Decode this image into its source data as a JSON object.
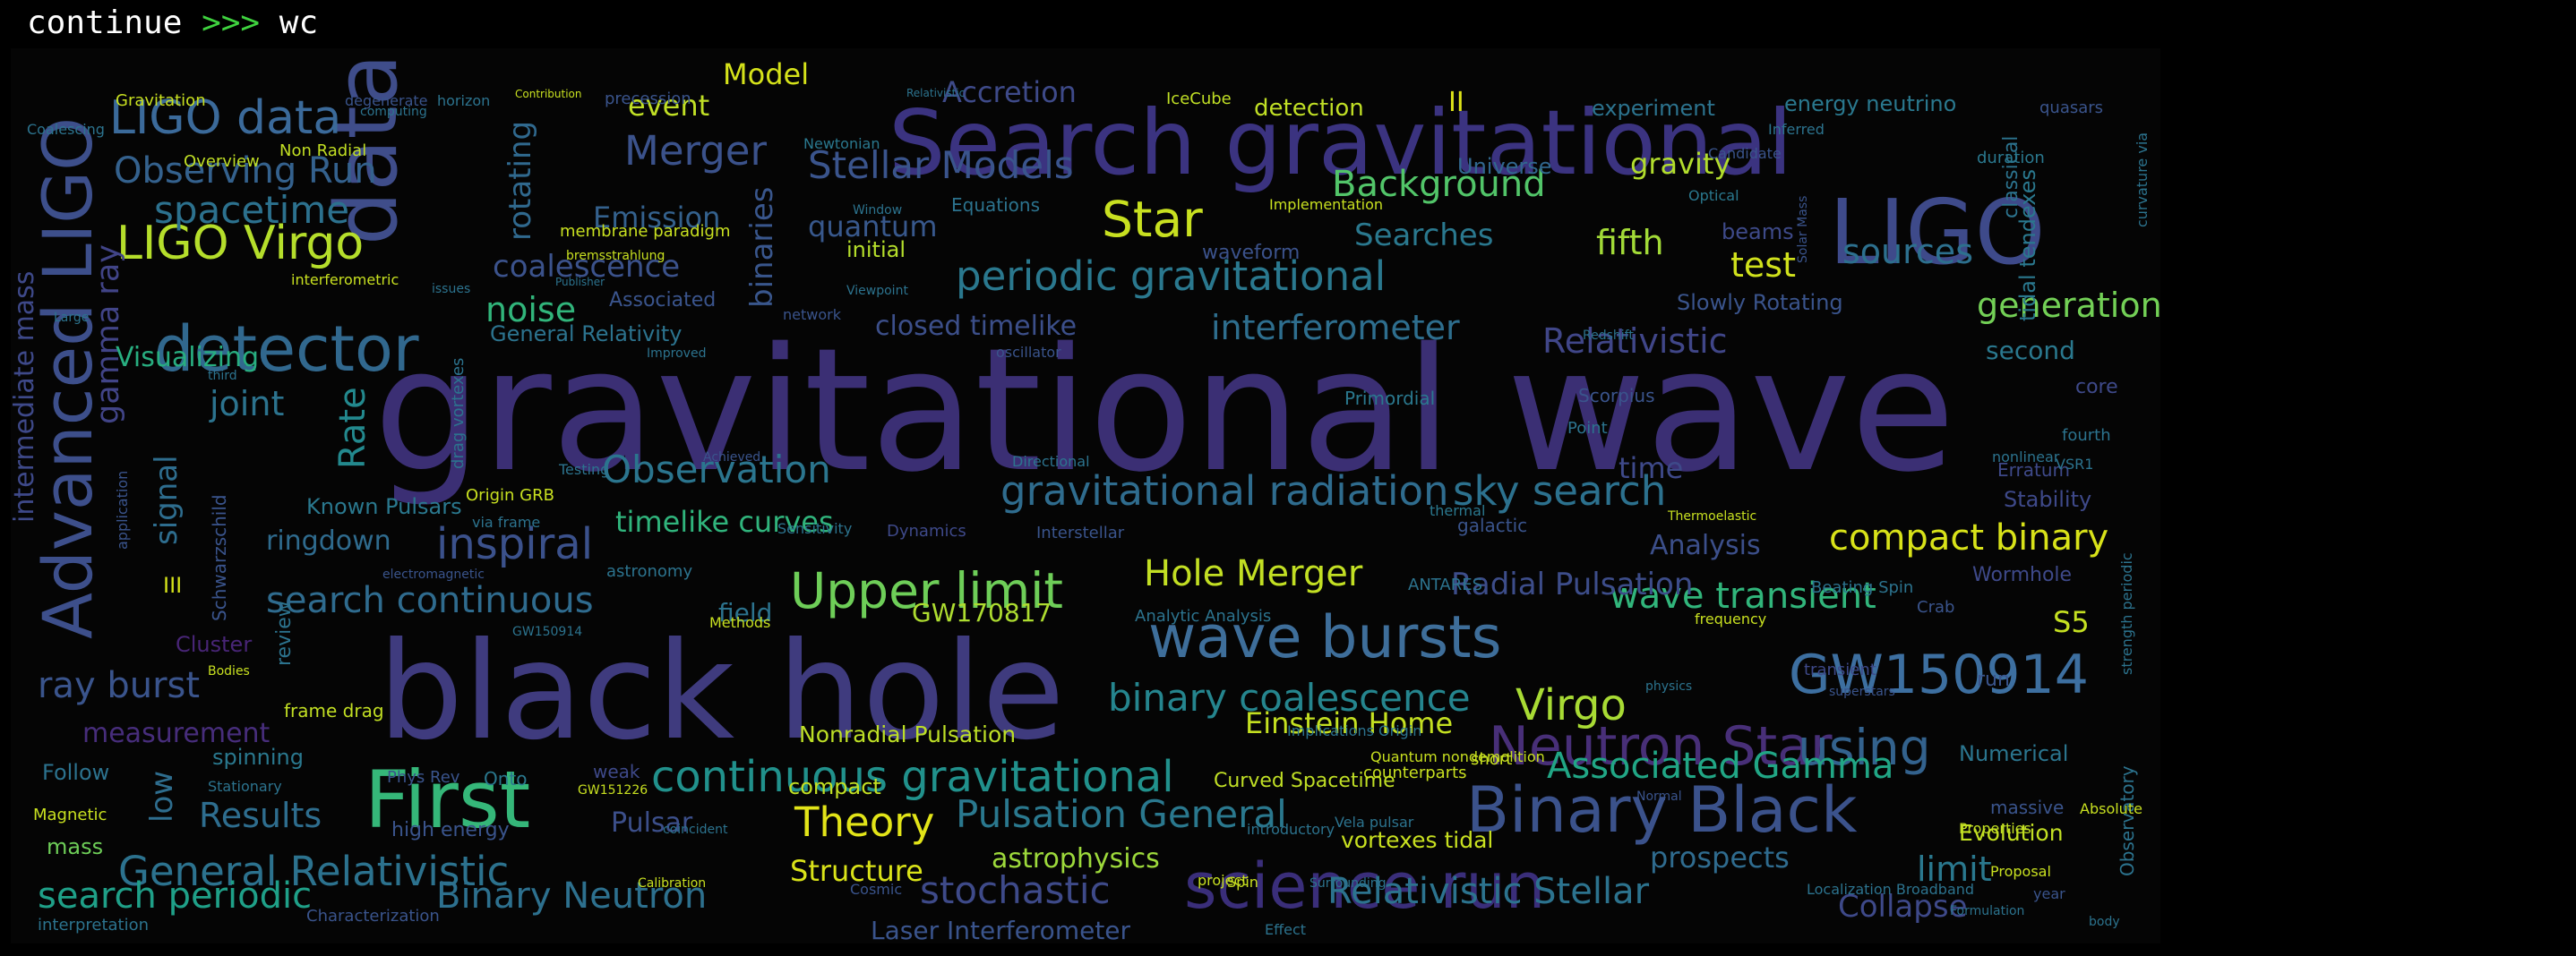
{
  "terminal": {
    "command_word": "continue",
    "prompt": ">>>",
    "input": "wc"
  },
  "wordcloud": {
    "words": [
      {
        "text": "gravitational wave",
        "color": "#3b2f74"
      },
      {
        "text": "black hole",
        "color": "#3f3b7e"
      },
      {
        "text": "Search gravitational",
        "color": "#3b3380"
      },
      {
        "text": "LIGO",
        "color": "#3e4a8a"
      },
      {
        "text": "Advanced LIGO",
        "color": "#3d4f8b"
      },
      {
        "text": "data",
        "color": "#3f4d8a"
      },
      {
        "text": "First",
        "color": "#35b779"
      },
      {
        "text": "Binary Black",
        "color": "#3b528b"
      },
      {
        "text": "science run",
        "color": "#3a2e7a"
      },
      {
        "text": "detector",
        "color": "#31688e"
      },
      {
        "text": "wave bursts",
        "color": "#3e6e9a"
      },
      {
        "text": "GW150914",
        "color": "#3d6fa0"
      },
      {
        "text": "Neutron Star",
        "color": "#482f78"
      },
      {
        "text": "LIGO data",
        "color": "#3b6a9a"
      },
      {
        "text": "LIGO Virgo",
        "color": "#b5de2b"
      },
      {
        "text": "Upper limit",
        "color": "#6ece58"
      },
      {
        "text": "continuous gravitational",
        "color": "#21918c"
      },
      {
        "text": "General Relativistic",
        "color": "#2c728e"
      },
      {
        "text": "periodic gravitational",
        "color": "#2a788e"
      },
      {
        "text": "Merger",
        "color": "#3b528b"
      },
      {
        "text": "Star",
        "color": "#c8e020"
      },
      {
        "text": "using",
        "color": "#33628d"
      },
      {
        "text": "gravitational radiation",
        "color": "#2f6c8e"
      },
      {
        "text": "Stellar Models",
        "color": "#3a548c"
      },
      {
        "text": "Observing Run",
        "color": "#34618d"
      },
      {
        "text": "spacetime",
        "color": "#2c718e"
      },
      {
        "text": "inspiral",
        "color": "#3b518b"
      },
      {
        "text": "Observation",
        "color": "#2b758e"
      },
      {
        "text": "search continuous",
        "color": "#2f6b8e"
      },
      {
        "text": "binary coalescence",
        "color": "#25858e"
      },
      {
        "text": "Virgo",
        "color": "#a8db34"
      },
      {
        "text": "Hole Merger",
        "color": "#c2df23"
      },
      {
        "text": "compact binary",
        "color": "#d8e219"
      },
      {
        "text": "sky search",
        "color": "#2c718e"
      },
      {
        "text": "wave transient",
        "color": "#31b57b"
      },
      {
        "text": "Associated Gamma",
        "color": "#21a685"
      },
      {
        "text": "Pulsation General",
        "color": "#2a788e"
      },
      {
        "text": "Theory",
        "color": "#e2e418"
      },
      {
        "text": "Relativistic Stellar",
        "color": "#2c738e"
      },
      {
        "text": "stochastic",
        "color": "#3e4a89"
      },
      {
        "text": "Binary Neutron",
        "color": "#2d708e"
      },
      {
        "text": "search periodic",
        "color": "#1fa088"
      },
      {
        "text": "ray burst",
        "color": "#3a548c"
      },
      {
        "text": "Results",
        "color": "#2e6d8e"
      },
      {
        "text": "Background",
        "color": "#52c569"
      },
      {
        "text": "fifth",
        "color": "#a2da37"
      },
      {
        "text": "test",
        "color": "#d0e11c"
      },
      {
        "text": "sources",
        "color": "#2d708e"
      },
      {
        "text": "generation",
        "color": "#73d056"
      },
      {
        "text": "Relativistic",
        "color": "#404688"
      },
      {
        "text": "interferometer",
        "color": "#2e6e8e"
      },
      {
        "text": "closed timelike",
        "color": "#3c4f8a"
      },
      {
        "text": "noise",
        "color": "#31b57b"
      },
      {
        "text": "joint",
        "color": "#2c738e"
      },
      {
        "text": "Rate",
        "color": "#23898e"
      },
      {
        "text": "signal",
        "color": "#2e6d8e"
      },
      {
        "text": "gamma ray",
        "color": "#414487"
      },
      {
        "text": "intermediate mass",
        "color": "#3e4989"
      },
      {
        "text": "low",
        "color": "#2e6d8e"
      },
      {
        "text": "measurement",
        "color": "#472d7b"
      },
      {
        "text": "Visualizing",
        "color": "#28ae80"
      },
      {
        "text": "Emission",
        "color": "#34618d"
      },
      {
        "text": "coalescence",
        "color": "#3b528b"
      },
      {
        "text": "binaries",
        "color": "#39568c"
      },
      {
        "text": "rotating",
        "color": "#30698e"
      },
      {
        "text": "quantum",
        "color": "#38588c"
      },
      {
        "text": "Searches",
        "color": "#2a788e"
      },
      {
        "text": "Accretion",
        "color": "#3e4a89"
      },
      {
        "text": "event",
        "color": "#c0df25"
      },
      {
        "text": "Model",
        "color": "#d5e21a"
      },
      {
        "text": "gravity",
        "color": "#b2dd2d"
      },
      {
        "text": "Universe",
        "color": "#31678e"
      },
      {
        "text": "prospects",
        "color": "#2f6b8e"
      },
      {
        "text": "limit",
        "color": "#2a788e"
      },
      {
        "text": "Collapse",
        "color": "#3e4989"
      },
      {
        "text": "Einstein Home",
        "color": "#c4e021"
      },
      {
        "text": "Radial Pulsation",
        "color": "#3d4d8a"
      },
      {
        "text": "Analysis",
        "color": "#3c4f8a"
      },
      {
        "text": "timelike curves",
        "color": "#30b47c"
      },
      {
        "text": "ringdown",
        "color": "#2f6b8e"
      },
      {
        "text": "Known Pulsars",
        "color": "#2a788e"
      },
      {
        "text": "S5",
        "color": "#c5e021"
      },
      {
        "text": "Structure",
        "color": "#dae319"
      },
      {
        "text": "Pulsar",
        "color": "#3c4f8a"
      },
      {
        "text": "astrophysics",
        "color": "#9dd93b"
      },
      {
        "text": "Nonradial Pulsation",
        "color": "#bddf26"
      },
      {
        "text": "Laser Interferometer",
        "color": "#3a548c"
      },
      {
        "text": "GW170817",
        "color": "#addc30"
      },
      {
        "text": "field",
        "color": "#2c738e"
      },
      {
        "text": "time",
        "color": "#3e4989"
      },
      {
        "text": "second",
        "color": "#2a788e"
      },
      {
        "text": "Evolution",
        "color": "#c2df23"
      },
      {
        "text": "Numerical",
        "color": "#2b758e"
      },
      {
        "text": "Stability",
        "color": "#3e4989"
      },
      {
        "text": "energy neutrino",
        "color": "#2a788e"
      },
      {
        "text": "experiment",
        "color": "#2c738e"
      },
      {
        "text": "detection",
        "color": "#c0df25"
      },
      {
        "text": "II",
        "color": "#dde318"
      },
      {
        "text": "beams",
        "color": "#3e4a89"
      },
      {
        "text": "Slowly Rotating",
        "color": "#3a548c"
      },
      {
        "text": "vortexes tidal",
        "color": "#c8e020"
      },
      {
        "text": "Follow",
        "color": "#2c728e"
      },
      {
        "text": "spinning",
        "color": "#2a788e"
      },
      {
        "text": "mass",
        "color": "#6ece58"
      },
      {
        "text": "Cluster",
        "color": "#482576"
      },
      {
        "text": "III",
        "color": "#d5e21a"
      },
      {
        "text": "frame drag",
        "color": "#c2df23"
      },
      {
        "text": "Wormhole",
        "color": "#3e4989"
      },
      {
        "text": "tidal tendexes",
        "color": "#2a788e"
      },
      {
        "text": "classical",
        "color": "#2c738e"
      },
      {
        "text": "core",
        "color": "#3e4989"
      },
      {
        "text": "Observatory",
        "color": "#2c738e"
      },
      {
        "text": "Curved Spacetime",
        "color": "#c0df25"
      },
      {
        "text": "Primordial",
        "color": "#2a788e"
      },
      {
        "text": "General Relativity",
        "color": "#2c738e"
      },
      {
        "text": "Associated",
        "color": "#3a548c"
      },
      {
        "text": "initial",
        "color": "#b5de2b"
      },
      {
        "text": "Equations",
        "color": "#2c738e"
      },
      {
        "text": "waveform",
        "color": "#3b528b"
      },
      {
        "text": "Dynamics",
        "color": "#3e4989"
      },
      {
        "text": "Sensitivity",
        "color": "#2c738e"
      },
      {
        "text": "Interstellar",
        "color": "#3a548c"
      },
      {
        "text": "astronomy",
        "color": "#2c738e"
      },
      {
        "text": "high energy",
        "color": "#3a548c"
      },
      {
        "text": "Onto",
        "color": "#2a788e"
      },
      {
        "text": "weak",
        "color": "#3e4989"
      },
      {
        "text": "compact",
        "color": "#c2df23"
      },
      {
        "text": "transient",
        "color": "#3e4989"
      },
      {
        "text": "run",
        "color": "#3a548c"
      },
      {
        "text": "Scorpius",
        "color": "#3a548c"
      },
      {
        "text": "Point",
        "color": "#2c738e"
      },
      {
        "text": "short",
        "color": "#c8e020"
      },
      {
        "text": "thermal",
        "color": "#2a788e"
      },
      {
        "text": "massive",
        "color": "#3a548c"
      },
      {
        "text": "Properties",
        "color": "#c2df23"
      },
      {
        "text": "Erratum",
        "color": "#3e4989"
      },
      {
        "text": "fourth",
        "color": "#2c738e"
      },
      {
        "text": "Overview",
        "color": "#c0df25"
      },
      {
        "text": "Non Radial",
        "color": "#c2df23"
      },
      {
        "text": "Gravitation",
        "color": "#c8e020"
      },
      {
        "text": "Coalescing",
        "color": "#2c738e"
      },
      {
        "text": "degenerate",
        "color": "#3a548c"
      },
      {
        "text": "horizon",
        "color": "#2c738e"
      },
      {
        "text": "precession",
        "color": "#3a548c"
      },
      {
        "text": "Newtonian",
        "color": "#2a788e"
      },
      {
        "text": "IceCube",
        "color": "#c0df25"
      },
      {
        "text": "quasars",
        "color": "#3a548c"
      },
      {
        "text": "Inferred",
        "color": "#2c738e"
      },
      {
        "text": "duration",
        "color": "#2a788e"
      },
      {
        "text": "Candidate",
        "color": "#3a548c"
      },
      {
        "text": "Window",
        "color": "#2c738e"
      },
      {
        "text": "Implementation",
        "color": "#c8e020"
      },
      {
        "text": "Optical",
        "color": "#2a788e"
      },
      {
        "text": "network",
        "color": "#3a548c"
      },
      {
        "text": "Viewpoint",
        "color": "#2c738e"
      },
      {
        "text": "oscillator",
        "color": "#3a548c"
      },
      {
        "text": "Improved",
        "color": "#2c738e"
      },
      {
        "text": "membrane paradigm",
        "color": "#c8e020"
      },
      {
        "text": "Testing",
        "color": "#2c738e"
      },
      {
        "text": "Origin GRB",
        "color": "#c8e020"
      },
      {
        "text": "via frame",
        "color": "#2c738e"
      },
      {
        "text": "Methods",
        "color": "#c8e020"
      },
      {
        "text": "Achieved",
        "color": "#3a548c"
      },
      {
        "text": "Directional",
        "color": "#2c738e"
      },
      {
        "text": "galactic",
        "color": "#3a548c"
      },
      {
        "text": "Beating Spin",
        "color": "#2c738e"
      },
      {
        "text": "ANTARES",
        "color": "#2c738e"
      },
      {
        "text": "Crab",
        "color": "#3a548c"
      },
      {
        "text": "Analytic Analysis",
        "color": "#2c738e"
      },
      {
        "text": "Implications Origin",
        "color": "#2c738e"
      },
      {
        "text": "Quantum nondemolition",
        "color": "#c8e020"
      },
      {
        "text": "counterparts",
        "color": "#c8e020"
      },
      {
        "text": "introductory",
        "color": "#2c738e"
      },
      {
        "text": "Vela pulsar",
        "color": "#2c738e"
      },
      {
        "text": "Phys Rev",
        "color": "#3a548c"
      },
      {
        "text": "Magnetic",
        "color": "#c8e020"
      },
      {
        "text": "interpretation",
        "color": "#2c738e"
      },
      {
        "text": "Characterization",
        "color": "#3a548c"
      },
      {
        "text": "Localization Broadband",
        "color": "#2c738e"
      },
      {
        "text": "Proposal",
        "color": "#c8e020"
      },
      {
        "text": "year",
        "color": "#3a548c"
      },
      {
        "text": "Formulation",
        "color": "#2c738e"
      },
      {
        "text": "Cosmic",
        "color": "#3a548c"
      },
      {
        "text": "Effect",
        "color": "#2c738e"
      },
      {
        "text": "project",
        "color": "#c8e020"
      },
      {
        "text": "Stationary",
        "color": "#2c738e"
      },
      {
        "text": "Schwarzschild",
        "color": "#3a548c"
      },
      {
        "text": "Bodies",
        "color": "#c8e020"
      },
      {
        "text": "review",
        "color": "#2c738e"
      },
      {
        "text": "electromagnetic",
        "color": "#3a548c"
      },
      {
        "text": "GW150914",
        "color": "#2c738e"
      },
      {
        "text": "GW151226",
        "color": "#c8e020"
      },
      {
        "text": "Relativistic",
        "color": "#2c738e"
      },
      {
        "text": "Contribution",
        "color": "#c8e020"
      },
      {
        "text": "computing",
        "color": "#2c738e"
      },
      {
        "text": "interferometric",
        "color": "#c8e020"
      },
      {
        "text": "issues",
        "color": "#2c738e"
      },
      {
        "text": "Large",
        "color": "#2c738e"
      },
      {
        "text": "bremsstrahlung",
        "color": "#c8e020"
      },
      {
        "text": "Publisher",
        "color": "#2c738e"
      },
      {
        "text": "drag vortexes",
        "color": "#2c738e"
      },
      {
        "text": "application",
        "color": "#3a548c"
      },
      {
        "text": "third",
        "color": "#2c738e"
      },
      {
        "text": "strength periodic",
        "color": "#2c738e"
      },
      {
        "text": "curvature via",
        "color": "#2c738e"
      },
      {
        "text": "Solar Mass",
        "color": "#3a548c"
      },
      {
        "text": "Redshift",
        "color": "#2c738e"
      },
      {
        "text": "Spin",
        "color": "#c8e020"
      },
      {
        "text": "Surrounding",
        "color": "#2c738e"
      },
      {
        "text": "Calibration",
        "color": "#c8e020"
      },
      {
        "text": "coincident",
        "color": "#2c738e"
      },
      {
        "text": "nonlinear",
        "color": "#2c738e"
      },
      {
        "text": "Thermoelastic",
        "color": "#c8e020"
      },
      {
        "text": "VSR1",
        "color": "#2c738e"
      },
      {
        "text": "Normal",
        "color": "#3a548c"
      },
      {
        "text": "frequency",
        "color": "#c8e020"
      },
      {
        "text": "physics",
        "color": "#2c738e"
      },
      {
        "text": "superstars",
        "color": "#3a548c"
      },
      {
        "text": "Absolute",
        "color": "#c8e020"
      },
      {
        "text": "body",
        "color": "#2c738e"
      }
    ]
  }
}
